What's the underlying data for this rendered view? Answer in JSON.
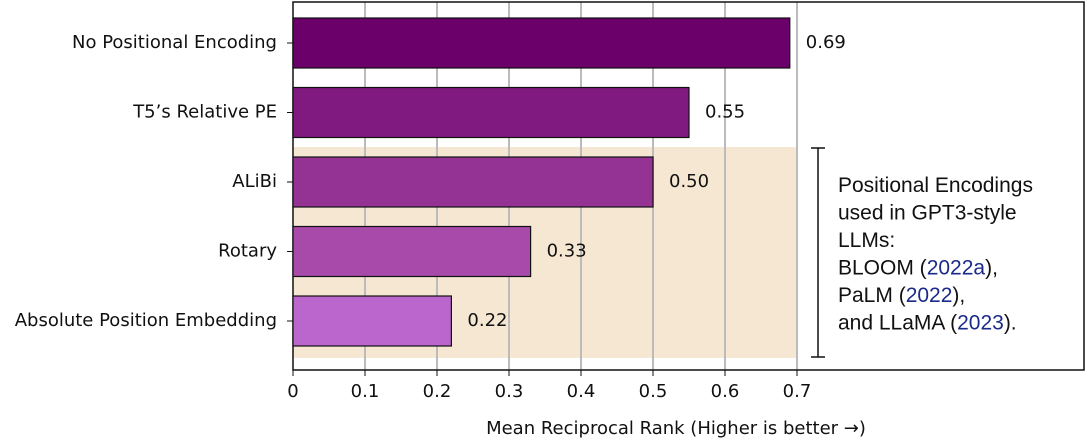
{
  "chart_data": {
    "type": "bar",
    "orientation": "horizontal",
    "categories": [
      "No Positional Encoding",
      "T5’s Relative PE",
      "ALiBi",
      "Rotary",
      "Absolute Position Embedding"
    ],
    "values": [
      0.69,
      0.55,
      0.5,
      0.33,
      0.22
    ],
    "value_labels": [
      "0.69",
      "0.55",
      "0.50",
      "0.33",
      "0.22"
    ],
    "colors": [
      "#6b006b",
      "#801a80",
      "#943394",
      "#a74aaa",
      "#bb66cc"
    ],
    "xlabel": "Mean Reciprocal Rank (Higher is better →)",
    "xlim": [
      0,
      1.1
    ],
    "xticks": [
      0,
      0.1,
      0.2,
      0.3,
      0.4,
      0.5,
      0.6,
      0.7
    ],
    "grid": true,
    "annotation": [
      [
        {
          "text": "Positional Encodings"
        }
      ],
      [
        {
          "text": "used in GPT3-style"
        }
      ],
      [
        {
          "text": "LLMs:"
        }
      ],
      [
        {
          "text": "BLOOM ("
        },
        {
          "text": "2022a",
          "cite": true
        },
        {
          "text": "),"
        }
      ],
      [
        {
          "text": "PaLM ("
        },
        {
          "text": "2022",
          "cite": true
        },
        {
          "text": "),"
        }
      ],
      [
        {
          "text": "and LLaMA ("
        },
        {
          "text": "2023",
          "cite": true
        },
        {
          "text": ")."
        }
      ]
    ]
  }
}
